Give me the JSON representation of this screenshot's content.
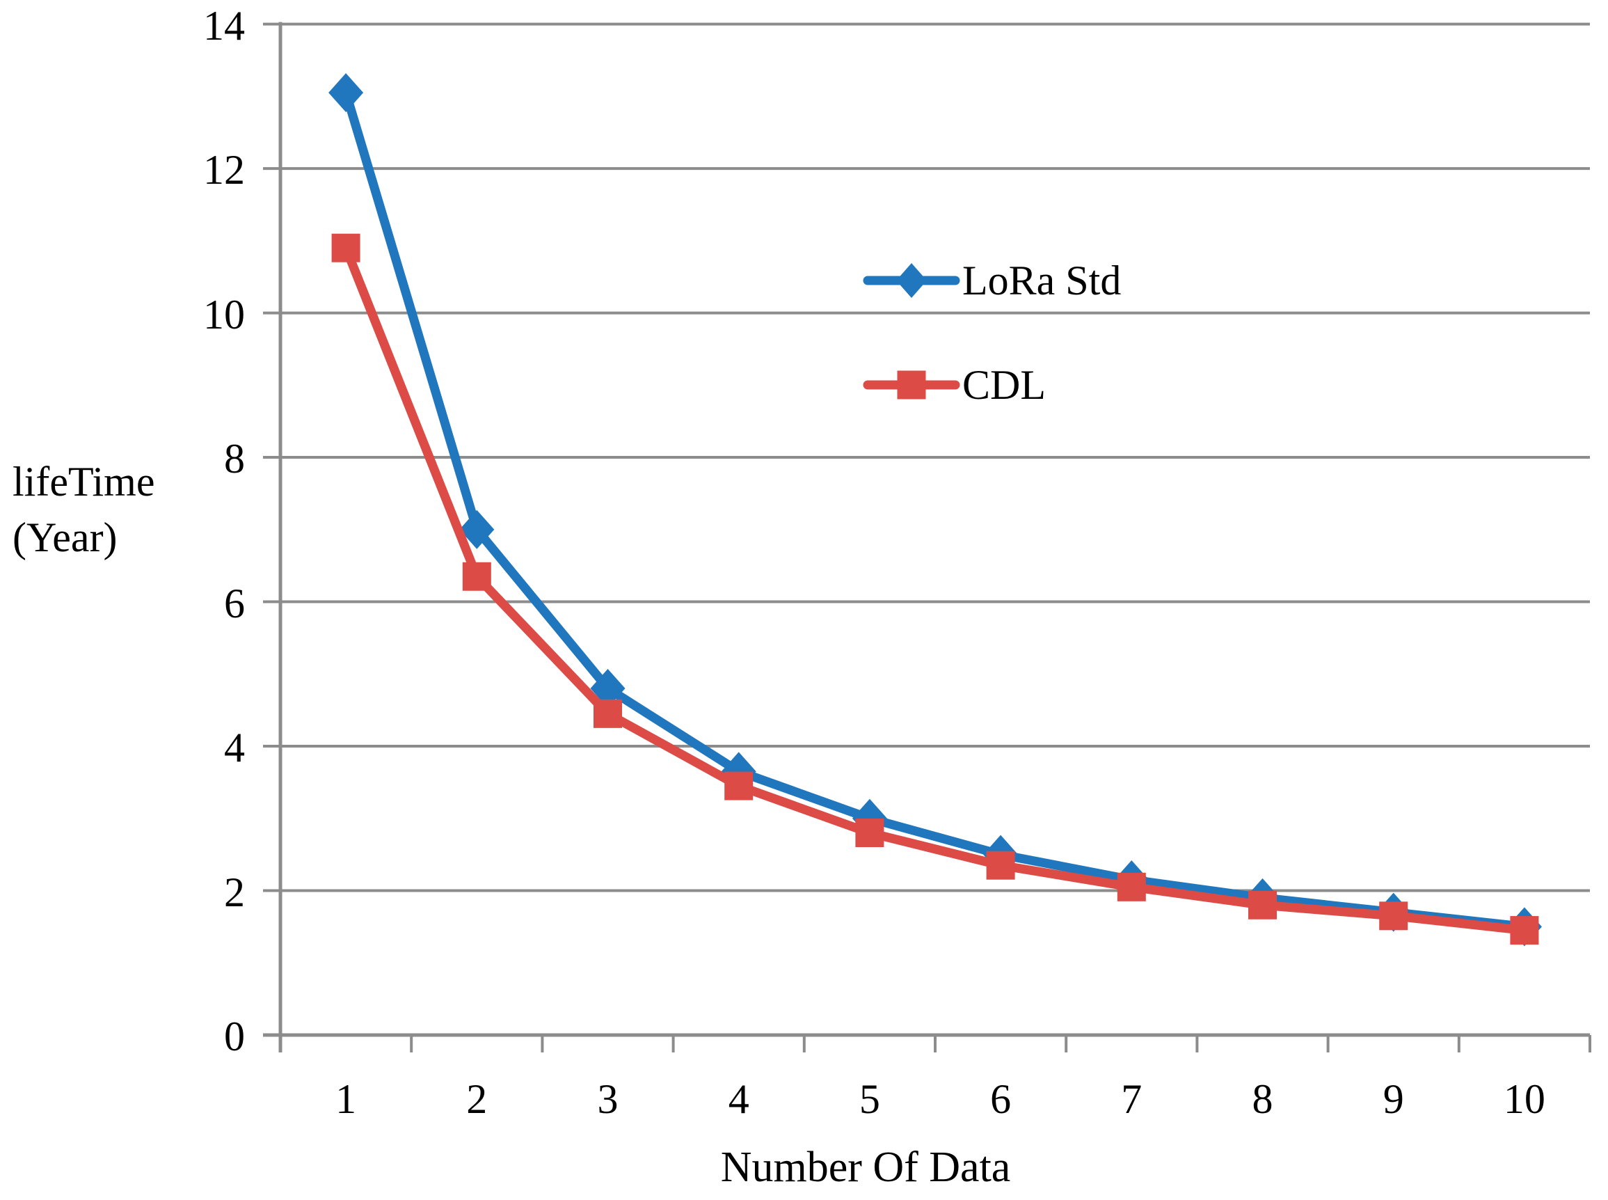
{
  "chart_data": {
    "type": "line",
    "title": "",
    "xlabel": "Number Of Data",
    "ylabel": "lifeTime (Year)",
    "ylabel_lines": [
      "lifeTime",
      "(Year)"
    ],
    "x": [
      1,
      2,
      3,
      4,
      5,
      6,
      7,
      8,
      9,
      10
    ],
    "series": [
      {
        "name": "LoRa Std",
        "color": "#2077BE",
        "marker": "diamond",
        "values": [
          13.05,
          7.0,
          4.8,
          3.65,
          3.0,
          2.5,
          2.15,
          1.9,
          1.7,
          1.5
        ]
      },
      {
        "name": "CDL",
        "color": "#DC4B45",
        "marker": "square",
        "values": [
          10.9,
          6.35,
          4.45,
          3.45,
          2.8,
          2.35,
          2.05,
          1.8,
          1.65,
          1.45
        ]
      }
    ],
    "ylim": [
      0,
      14
    ],
    "y_tick_step": 2,
    "y_ticks": [
      0,
      2,
      4,
      6,
      8,
      10,
      12,
      14
    ],
    "grid": "horizontal",
    "gridline_color": "#8C8C8C",
    "axis_color": "#8C8C8C",
    "text_color": "#000000",
    "background": "#FFFFFF",
    "legend_position": "inside-upper-middle"
  }
}
